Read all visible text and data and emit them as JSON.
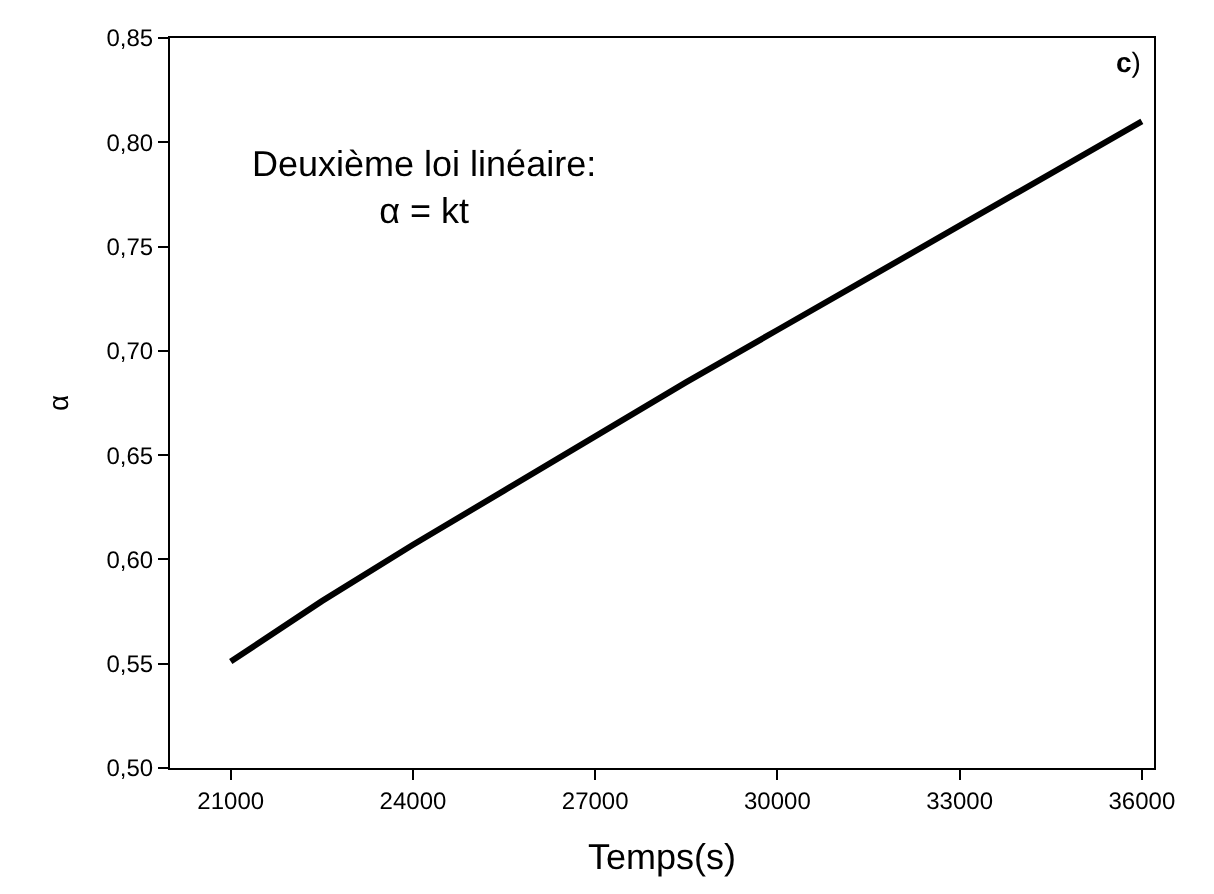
{
  "chart_data": {
    "type": "line",
    "xlabel": "Temps(s)",
    "ylabel": "α",
    "annotations": [
      "Deuxième loi linéaire:\nα = kt",
      "c)"
    ],
    "x": [
      21000,
      22500,
      24000,
      25500,
      27000,
      28500,
      30000,
      31500,
      33000,
      34500,
      36000
    ],
    "series": [
      {
        "color": "#000000",
        "values": [
          0.551,
          0.58,
          0.607,
          0.633,
          0.659,
          0.685,
          0.71,
          0.735,
          0.76,
          0.785,
          0.81
        ]
      }
    ],
    "xlim": [
      20000,
      36200
    ],
    "xticks": [
      21000,
      24000,
      27000,
      30000,
      33000,
      36000
    ],
    "ylim": [
      0.5,
      0.85
    ],
    "yticks": [
      {
        "value": 0.5,
        "label": "0,50"
      },
      {
        "value": 0.55,
        "label": "0,55"
      },
      {
        "value": 0.6,
        "label": "0,60"
      },
      {
        "value": 0.65,
        "label": "0,65"
      },
      {
        "value": 0.7,
        "label": "0,70"
      },
      {
        "value": 0.75,
        "label": "0,75"
      },
      {
        "value": 0.8,
        "label": "0,80"
      },
      {
        "value": 0.85,
        "label": "0,85"
      }
    ],
    "marker": "none",
    "line_style": "solid"
  }
}
